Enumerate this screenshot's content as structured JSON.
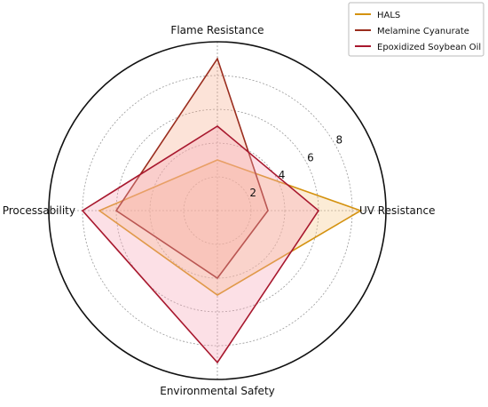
{
  "chart_data": {
    "type": "radar",
    "title": "",
    "axes": [
      "Flame Resistance",
      "UV Resistance",
      "Environmental Safety",
      "Processability"
    ],
    "rlim": [
      0,
      10
    ],
    "r_ticks": [
      2,
      4,
      6,
      8
    ],
    "r_tick_labels": [
      "2",
      "4",
      "6",
      "8"
    ],
    "grid": true,
    "legend_position": "top-right",
    "series": [
      {
        "name": "HALS",
        "values": [
          3,
          8.5,
          5,
          7
        ],
        "color": "#d4920f",
        "fill": "#f5c98a",
        "fill_opacity": 0.35
      },
      {
        "name": "Melamine Cyanurate",
        "values": [
          9,
          3,
          4,
          6
        ],
        "color": "#9a2d1e",
        "fill": "#f5b08e",
        "fill_opacity": 0.35
      },
      {
        "name": "Epoxidized Soybean Oil",
        "values": [
          5,
          6,
          9,
          8
        ],
        "color": "#a8182e",
        "fill": "#f7a6b8",
        "fill_opacity": 0.35
      }
    ]
  }
}
